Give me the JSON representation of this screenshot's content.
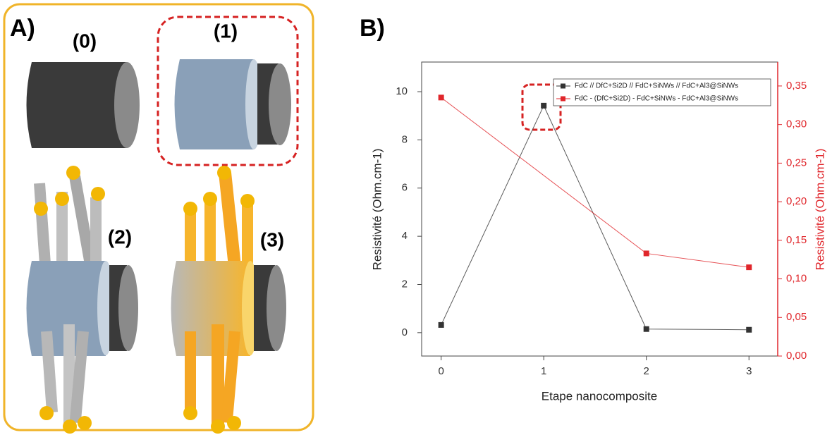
{
  "panel_labels": [
    "A)",
    "B)"
  ],
  "diagram": {
    "labels": [
      "(0)",
      "(1)",
      "(2)",
      "(3)"
    ]
  },
  "chart_data": {
    "type": "line",
    "xlabel": "Etape nanocomposite",
    "ylabel": "Resistivité (Ohm.cm-1)",
    "y2label": "Resistivité (Ohm.cm-1)",
    "xlim": [
      -0.19,
      3.28
    ],
    "xticks": [
      0,
      1,
      2,
      3
    ],
    "ylim": [
      -0.97,
      11.23
    ],
    "yticks": [
      0,
      2,
      4,
      6,
      8,
      10
    ],
    "y2lim": [
      0,
      0.381
    ],
    "y2ticks": [
      {
        "value": 0,
        "label": "0,00"
      },
      {
        "value": 0.05,
        "label": "0,05"
      },
      {
        "value": 0.1,
        "label": "0,10"
      },
      {
        "value": 0.15,
        "label": "0,15"
      },
      {
        "value": 0.2,
        "label": "0,20"
      },
      {
        "value": 0.25,
        "label": "0,25"
      },
      {
        "value": 0.3,
        "label": "0,30"
      },
      {
        "value": 0.35,
        "label": "0,35"
      }
    ],
    "series": [
      {
        "name": "FdC // DfC+Si2D // FdC+SiNWs // FdC+Al3@SiNWs",
        "color": "#333333",
        "x": [
          0,
          1,
          2,
          3
        ],
        "values": [
          0.32,
          9.42,
          0.15,
          0.12
        ]
      },
      {
        "name": "FdC - (DfC+Si2D) - FdC+SiNWs - FdC+Al3@SiNWs",
        "color": "#e0262b",
        "axis": "y2",
        "x": [
          0,
          2,
          3
        ],
        "values": [
          0.335,
          0.133,
          0.115
        ]
      }
    ]
  }
}
